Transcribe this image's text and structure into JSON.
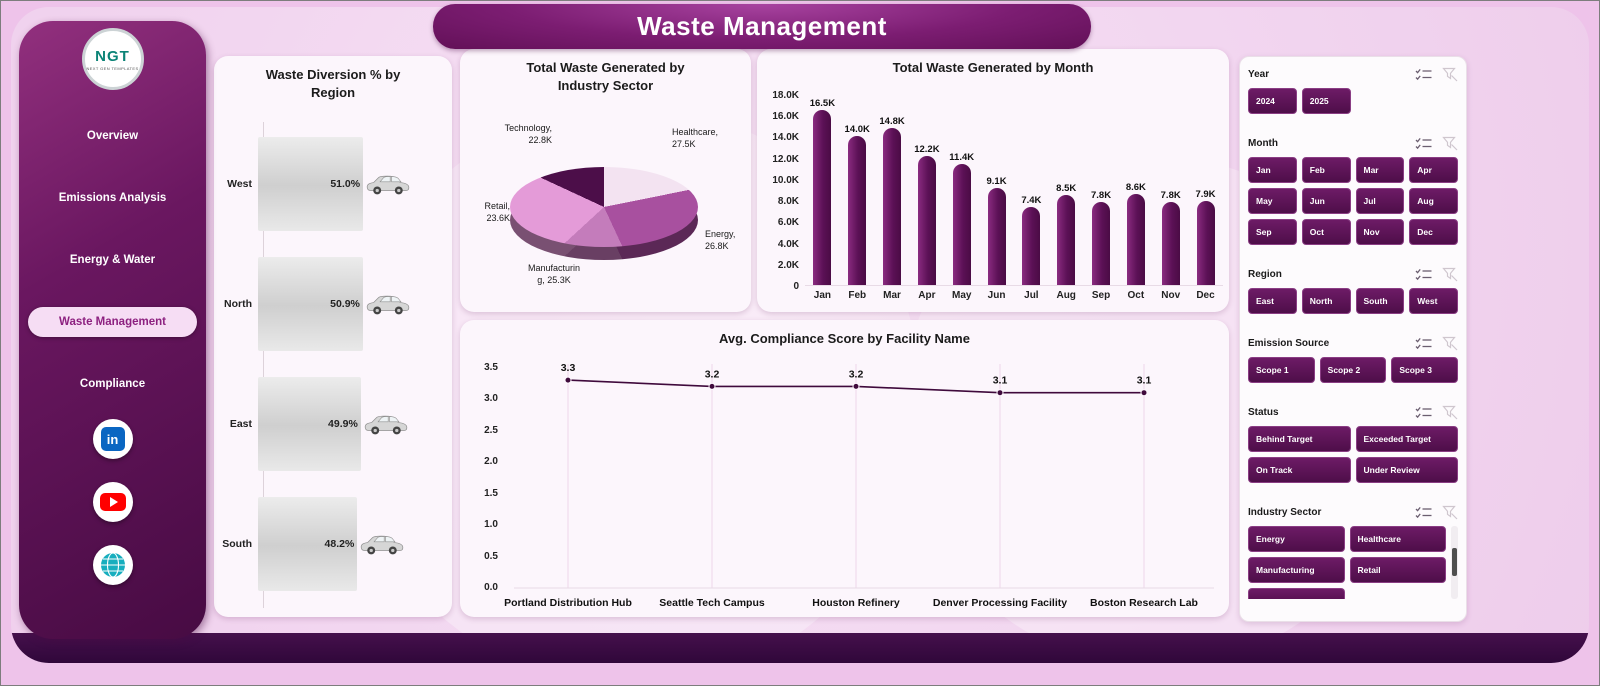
{
  "header": {
    "title": "Waste Management"
  },
  "sidebar": {
    "logo_text": "NGT",
    "logo_subtext": "NEXT GEN TEMPLATES",
    "items": [
      {
        "label": "Overview",
        "active": false
      },
      {
        "label": "Emissions Analysis",
        "active": false
      },
      {
        "label": "Energy & Water",
        "active": false
      },
      {
        "label": "Waste Management",
        "active": true
      },
      {
        "label": "Compliance",
        "active": false
      }
    ],
    "social": [
      "linkedin",
      "youtube",
      "web"
    ]
  },
  "chart_data": [
    {
      "type": "bar",
      "orientation": "horizontal",
      "title": "Waste Diversion % by Region",
      "categories": [
        "West",
        "North",
        "East",
        "South"
      ],
      "values": [
        51.0,
        50.9,
        49.9,
        48.2
      ],
      "value_labels": [
        "51.0%",
        "50.9%",
        "49.9%",
        "48.2%"
      ]
    },
    {
      "type": "pie",
      "title": "Total Waste  Generated by Industry Sector",
      "categories": [
        "Technology",
        "Healthcare",
        "Energy",
        "Manufacturing",
        "Retail"
      ],
      "values": [
        22.8,
        27.5,
        26.8,
        25.3,
        23.6
      ],
      "unit": "K",
      "display_labels": [
        "Technology, 22.8K",
        "Healthcare, 27.5K",
        "Energy, 26.8K",
        "Manufacturing, 25.3K",
        "Retail, 23.6K"
      ]
    },
    {
      "type": "bar",
      "title": "Total Waste Generated by Month",
      "categories": [
        "Jan",
        "Feb",
        "Mar",
        "Apr",
        "May",
        "Jun",
        "Jul",
        "Aug",
        "Sep",
        "Oct",
        "Nov",
        "Dec"
      ],
      "values": [
        16.5,
        14.0,
        14.8,
        12.2,
        11.4,
        9.1,
        7.4,
        8.5,
        7.8,
        8.6,
        7.8,
        7.9
      ],
      "value_labels": [
        "16.5K",
        "14.0K",
        "14.8K",
        "12.2K",
        "11.4K",
        "9.1K",
        "7.4K",
        "8.5K",
        "7.8K",
        "8.6K",
        "7.8K",
        "7.9K"
      ],
      "ylim": [
        0,
        18
      ],
      "ytick_labels": [
        "0",
        "2.0K",
        "4.0K",
        "6.0K",
        "8.0K",
        "10.0K",
        "12.0K",
        "14.0K",
        "16.0K",
        "18.0K"
      ]
    },
    {
      "type": "line",
      "title": "Avg. Compliance Score by Facility Name",
      "categories": [
        "Portland Distribution Hub",
        "Seattle Tech Campus",
        "Houston Refinery",
        "Denver Processing Facility",
        "Boston Research Lab"
      ],
      "values": [
        3.3,
        3.2,
        3.2,
        3.1,
        3.1
      ],
      "value_labels": [
        "3.3",
        "3.2",
        "3.2",
        "3.1",
        "3.1"
      ],
      "ylim": [
        0,
        3.5
      ],
      "ytick_labels": [
        "0.0",
        "0.5",
        "1.0",
        "1.5",
        "2.0",
        "2.5",
        "3.0",
        "3.5"
      ]
    }
  ],
  "filters": {
    "sections": [
      {
        "label": "Year",
        "columns": 4,
        "buttons": [
          "2024",
          "2025"
        ]
      },
      {
        "label": "Month",
        "columns": 4,
        "buttons": [
          "Jan",
          "Feb",
          "Mar",
          "Apr",
          "May",
          "Jun",
          "Jul",
          "Aug",
          "Sep",
          "Oct",
          "Nov",
          "Dec"
        ]
      },
      {
        "label": "Region",
        "columns": 4,
        "buttons": [
          "East",
          "North",
          "South",
          "West"
        ]
      },
      {
        "label": "Emission Source",
        "columns": 3,
        "buttons": [
          "Scope 1",
          "Scope 2",
          "Scope 3"
        ]
      },
      {
        "label": "Status",
        "columns": 2,
        "buttons": [
          "Behind Target",
          "Exceeded Target",
          "On Track",
          "Under Review"
        ]
      },
      {
        "label": "Industry Sector",
        "columns": 2,
        "scroll": true,
        "buttons": [
          "Energy",
          "Healthcare",
          "Manufacturing",
          "Retail"
        ]
      }
    ]
  },
  "colors": {
    "accent": "#5a1258",
    "button": "#5a1258",
    "pie": {
      "Technology": "#4c0e49",
      "Healthcare": "#f3e3f1",
      "Energy": "#a8509f",
      "Manufacturing": "#c47cbb",
      "Retail": "#e49bd8"
    }
  }
}
